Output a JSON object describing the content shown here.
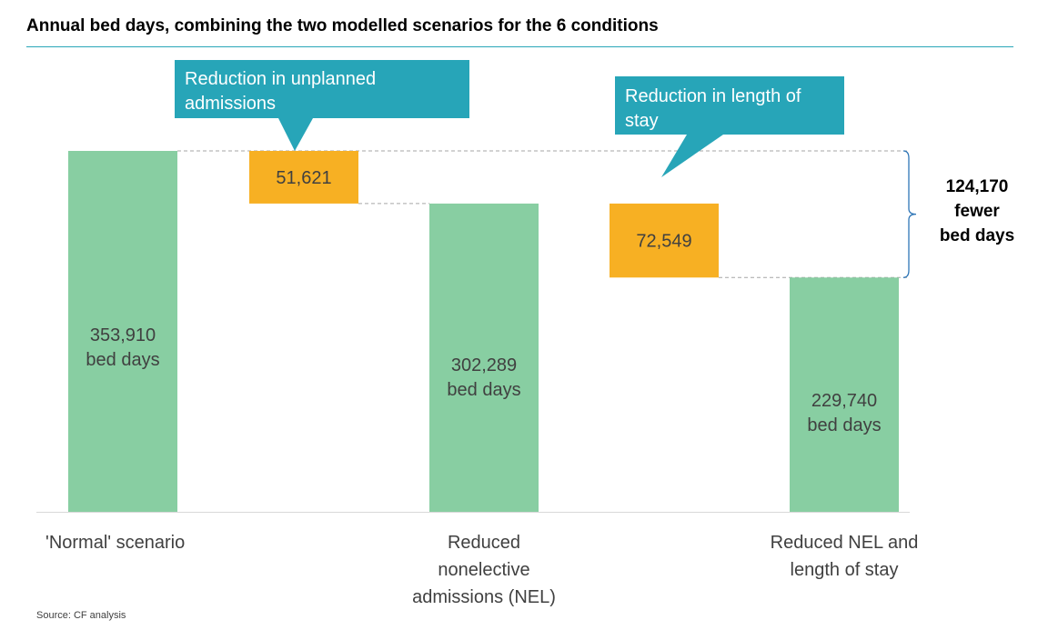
{
  "chart_data": {
    "type": "bar",
    "subtype": "waterfall",
    "title": "Annual bed days, combining the two modelled scenarios for the 6 conditions",
    "unit": "bed days",
    "ylim": [
      0,
      353910
    ],
    "bars": [
      {
        "category": [
          "'Normal' scenario"
        ],
        "value": 353910,
        "value_text": "353,910",
        "unit_text": "bed days",
        "color": "#88cea2"
      },
      {
        "category": [
          "Reduced",
          "nonelective",
          "admissions (NEL)"
        ],
        "value": 302289,
        "value_text": "302,289",
        "unit_text": "bed days",
        "color": "#88cea2"
      },
      {
        "category": [
          "Reduced NEL and",
          "length of stay"
        ],
        "value": 229740,
        "value_text": "229,740",
        "unit_text": "bed days",
        "color": "#88cea2"
      }
    ],
    "reductions": [
      {
        "from": 353910,
        "to": 302289,
        "value_text": "51,621",
        "color": "#f7b023",
        "callout": [
          "Reduction in unplanned",
          "admissions"
        ]
      },
      {
        "from": 302289,
        "to": 229740,
        "value_text": "72,549",
        "color": "#f7b023",
        "callout": [
          "Reduction in length of",
          "stay"
        ]
      }
    ],
    "total_reduction": {
      "value": 124170,
      "lines": [
        "124,170",
        "fewer",
        "bed days"
      ]
    },
    "callout_color": "#27a5b8",
    "guide_color": "#a6a6a6",
    "brace_color": "#2e75b6"
  },
  "source": "Source: CF analysis"
}
